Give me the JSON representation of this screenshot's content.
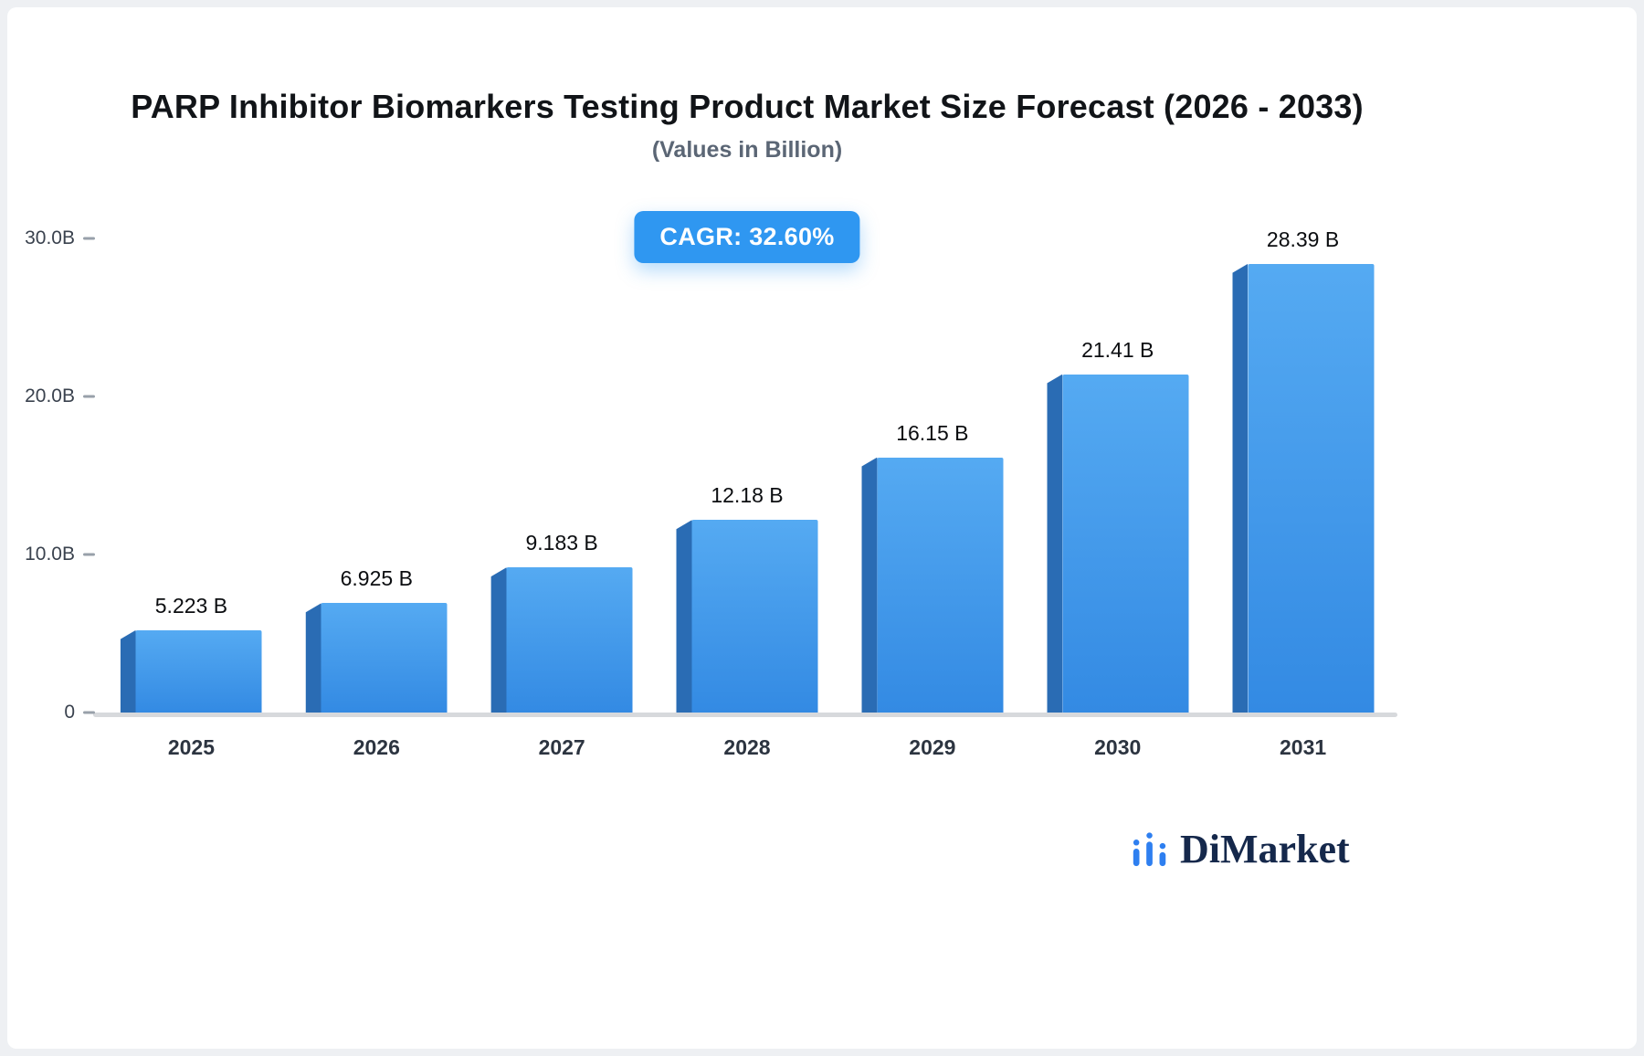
{
  "chart_data": {
    "type": "bar",
    "title": "PARP Inhibitor Biomarkers Testing Product Market Size Forecast (2026 - 2033)",
    "subtitle": "(Values in Billion)",
    "cagr_label": "CAGR: 32.60%",
    "categories": [
      "2025",
      "2026",
      "2027",
      "2028",
      "2029",
      "2030",
      "2031"
    ],
    "values": [
      5.223,
      6.925,
      9.183,
      12.18,
      16.15,
      21.41,
      28.39
    ],
    "value_labels": [
      "5.223 B",
      "6.925 B",
      "9.183 B",
      "12.18 B",
      "16.15 B",
      "21.41 B",
      "28.39 B"
    ],
    "ylabel": "",
    "xlabel": "",
    "ylim": [
      0,
      30
    ],
    "y_ticks": [
      {
        "value": 0,
        "label": "0"
      },
      {
        "value": 10,
        "label": "10.0B"
      },
      {
        "value": 20,
        "label": "20.0B"
      },
      {
        "value": 30,
        "label": "30.0B"
      }
    ],
    "grid": false,
    "legend": "none",
    "colors": {
      "bar_top": "#55aaf2",
      "bar_bottom": "#338ae3",
      "bar_side": "#2a6cb4",
      "badge": "#2f97f1",
      "baseline": "#d7d9dc",
      "logo_blue": "#2e7ff0",
      "logo_navy": "#15284b"
    }
  },
  "branding": {
    "logo_text": "DiMarket",
    "logo_icon": "bar-chart-icon"
  }
}
